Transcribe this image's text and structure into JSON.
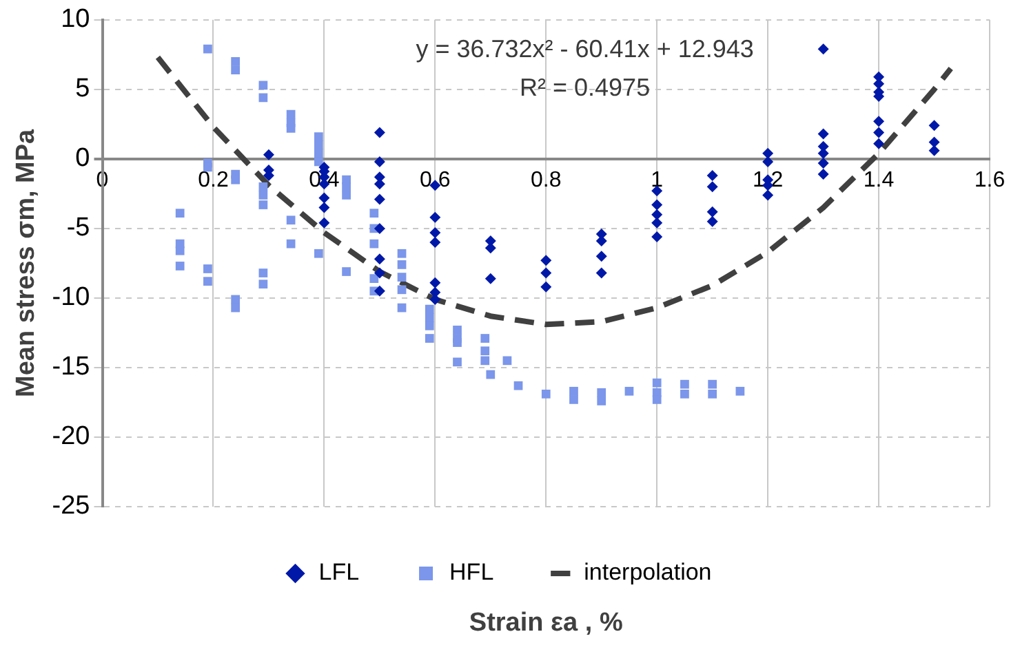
{
  "chart_data": {
    "type": "scatter",
    "xlabel": "Strain εa , %",
    "ylabel": "Mean stress σm, MPa",
    "xlim": [
      0,
      1.6
    ],
    "xticks": [
      0,
      0.2,
      0.4,
      0.6,
      0.8,
      1,
      1.2,
      1.4,
      1.6
    ],
    "ylim": [
      -25,
      10
    ],
    "yticks": [
      -25,
      -20,
      -15,
      -10,
      -5,
      0,
      5,
      10
    ],
    "grid": true,
    "legend": "bottom",
    "annotations": [
      "y = 36.732x² - 60.41x + 12.943",
      "R² = 0.4975"
    ],
    "series": [
      {
        "name": "LFL",
        "marker": "diamond",
        "color": "#0018a8",
        "x": [
          0.3,
          0.3,
          0.3,
          0.4,
          0.4,
          0.4,
          0.4,
          0.4,
          0.4,
          0.4,
          0.5,
          0.5,
          0.5,
          0.5,
          0.5,
          0.5,
          0.5,
          0.5,
          0.5,
          0.6,
          0.6,
          0.6,
          0.6,
          0.6,
          0.6,
          0.6,
          0.7,
          0.7,
          0.7,
          0.8,
          0.8,
          0.8,
          0.9,
          0.9,
          0.9,
          0.9,
          1,
          1,
          1,
          1,
          1,
          1.1,
          1.1,
          1.1,
          1.1,
          1.2,
          1.2,
          1.2,
          1.2,
          1.2,
          1.3,
          1.3,
          1.3,
          1.3,
          1.3,
          1.3,
          1.4,
          1.4,
          1.4,
          1.4,
          1.4,
          1.4,
          1.4,
          1.5,
          1.5,
          1.5
        ],
        "values": [
          0.3,
          -0.8,
          -1.2,
          -0.6,
          -0.9,
          -1.3,
          -1.8,
          -2.8,
          -3.5,
          -4.6,
          1.9,
          -0.2,
          -1.3,
          -1.8,
          -2.9,
          -5,
          -7.2,
          -8.2,
          -9.5,
          -1.9,
          -4.2,
          -5.3,
          -6,
          -8.9,
          -9.6,
          -10.1,
          -5.9,
          -6.4,
          -8.6,
          -7.3,
          -8.2,
          -9.2,
          -5.4,
          -5.9,
          -7,
          -8.2,
          -2.3,
          -3.3,
          -4,
          -4.6,
          -5.6,
          -1.2,
          -2,
          -3.8,
          -4.5,
          0.4,
          -0.2,
          -1.5,
          -1.9,
          -2.6,
          7.9,
          1.8,
          0.9,
          0.4,
          -0.3,
          -1.1,
          5.9,
          5.4,
          4.8,
          4.5,
          2.7,
          1.9,
          1.1,
          2.4,
          1.2,
          0.6
        ]
      },
      {
        "name": "HFL",
        "marker": "square",
        "color": "#7b96ea",
        "x": [
          0.14,
          0.14,
          0.14,
          0.14,
          0.19,
          0.19,
          0.19,
          0.19,
          0.19,
          0.24,
          0.24,
          0.24,
          0.24,
          0.24,
          0.24,
          0.29,
          0.29,
          0.29,
          0.29,
          0.29,
          0.29,
          0.29,
          0.34,
          0.34,
          0.34,
          0.34,
          0.34,
          0.39,
          0.39,
          0.39,
          0.39,
          0.39,
          0.44,
          0.44,
          0.44,
          0.44,
          0.49,
          0.49,
          0.49,
          0.49,
          0.49,
          0.54,
          0.54,
          0.54,
          0.54,
          0.54,
          0.59,
          0.59,
          0.59,
          0.59,
          0.64,
          0.64,
          0.64,
          0.64,
          0.69,
          0.69,
          0.69,
          0.7,
          0.73,
          0.75,
          0.8,
          0.85,
          0.85,
          0.9,
          0.9,
          0.95,
          1,
          1,
          1,
          1.05,
          1.05,
          1.1,
          1.1,
          1.15
        ],
        "values": [
          -3.9,
          -6.1,
          -6.6,
          -7.7,
          7.9,
          -0.3,
          -0.6,
          -7.9,
          -8.8,
          7,
          6.4,
          -1.1,
          -1.5,
          -10.1,
          -10.7,
          5.3,
          4.4,
          -2,
          -2.6,
          -3.3,
          -8.2,
          -9,
          3.2,
          2.6,
          2.2,
          -4.4,
          -6.1,
          1.6,
          1,
          0.4,
          -0.2,
          -6.8,
          -1.5,
          -2,
          -2.6,
          -8.1,
          -3.9,
          -5,
          -6.1,
          -8.6,
          -9.5,
          -6.8,
          -7.6,
          -8.5,
          -9.4,
          -10.7,
          -10.8,
          -11.4,
          -12,
          -12.9,
          -12.3,
          -12.9,
          -13.2,
          -14.6,
          -12.9,
          -13.8,
          -14.5,
          -15.5,
          -14.5,
          -16.3,
          -16.9,
          -16.7,
          -17.3,
          -16.8,
          -17.4,
          -16.7,
          -16.1,
          -16.8,
          -17.3,
          -16.2,
          -16.9,
          -16.2,
          -16.9,
          -16.7
        ]
      },
      {
        "name": "interpolation",
        "type": "line",
        "marker": "none",
        "line_style": "dashed",
        "color": "#404040",
        "x": [
          0.1,
          0.2,
          0.3,
          0.4,
          0.5,
          0.6,
          0.7,
          0.8,
          0.9,
          1,
          1.1,
          1.2,
          1.3,
          1.4,
          1.5,
          1.53
        ],
        "values": [
          7.3,
          2.3,
          -1.9,
          -5.3,
          -8.1,
          -10.1,
          -11.3,
          -11.9,
          -11.7,
          -10.7,
          -9.1,
          -6.7,
          -3.5,
          0.4,
          5,
          6.5
        ]
      }
    ]
  }
}
